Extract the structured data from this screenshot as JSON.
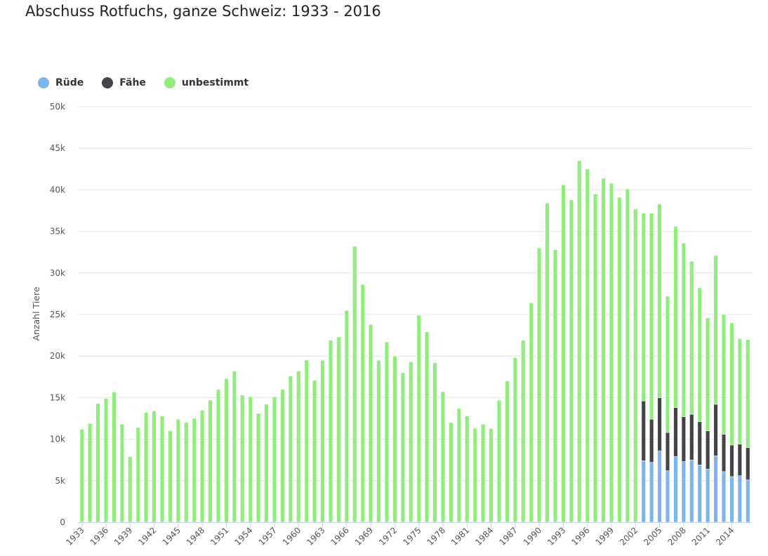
{
  "chart_data": {
    "type": "bar",
    "stacked": true,
    "title": "Abschuss Rotfuchs, ganze Schweiz: 1933 - 2016",
    "ylabel": "Anzahl Tiere",
    "xlabel": "",
    "ylim": [
      0,
      50000
    ],
    "y_ticks": [
      "0",
      "5k",
      "10k",
      "15k",
      "20k",
      "25k",
      "30k",
      "35k",
      "40k",
      "45k",
      "50k"
    ],
    "x_tick_labels": [
      "1933",
      "1936",
      "1939",
      "1942",
      "1945",
      "1948",
      "1951",
      "1954",
      "1957",
      "1960",
      "1963",
      "1966",
      "1969",
      "1972",
      "1975",
      "1978",
      "1981",
      "1984",
      "1987",
      "1990",
      "1993",
      "1996",
      "1999",
      "2002",
      "2005",
      "2008",
      "2011",
      "2014"
    ],
    "grid": true,
    "legend_position": "top-left",
    "categories": [
      "1933",
      "1934",
      "1935",
      "1936",
      "1937",
      "1938",
      "1939",
      "1940",
      "1941",
      "1942",
      "1943",
      "1944",
      "1945",
      "1946",
      "1947",
      "1948",
      "1949",
      "1950",
      "1951",
      "1952",
      "1953",
      "1954",
      "1955",
      "1956",
      "1957",
      "1958",
      "1959",
      "1960",
      "1961",
      "1962",
      "1963",
      "1964",
      "1965",
      "1966",
      "1967",
      "1968",
      "1969",
      "1970",
      "1971",
      "1972",
      "1973",
      "1974",
      "1975",
      "1976",
      "1977",
      "1978",
      "1979",
      "1980",
      "1981",
      "1982",
      "1983",
      "1984",
      "1985",
      "1986",
      "1987",
      "1988",
      "1989",
      "1990",
      "1991",
      "1992",
      "1993",
      "1994",
      "1995",
      "1996",
      "1997",
      "1998",
      "1999",
      "2000",
      "2001",
      "2002",
      "2003",
      "2004",
      "2005",
      "2006",
      "2007",
      "2008",
      "2009",
      "2010",
      "2011",
      "2012",
      "2013",
      "2014",
      "2015",
      "2016"
    ],
    "series": [
      {
        "name": "Rüde",
        "color": "#7cb5ec",
        "values": [
          0,
          0,
          0,
          0,
          0,
          0,
          0,
          0,
          0,
          0,
          0,
          0,
          0,
          0,
          0,
          0,
          0,
          0,
          0,
          0,
          0,
          0,
          0,
          0,
          0,
          0,
          0,
          0,
          0,
          0,
          0,
          0,
          0,
          0,
          0,
          0,
          0,
          0,
          0,
          0,
          0,
          0,
          0,
          0,
          0,
          0,
          0,
          0,
          0,
          0,
          0,
          0,
          0,
          0,
          0,
          0,
          0,
          0,
          0,
          0,
          0,
          0,
          0,
          0,
          0,
          0,
          0,
          0,
          0,
          0,
          7400,
          7200,
          8600,
          6200,
          7900,
          7300,
          7500,
          6900,
          6400,
          8000,
          6100,
          5500,
          5600,
          5100
        ]
      },
      {
        "name": "Fähe",
        "color": "#434348",
        "values": [
          0,
          0,
          0,
          0,
          0,
          0,
          0,
          0,
          0,
          0,
          0,
          0,
          0,
          0,
          0,
          0,
          0,
          0,
          0,
          0,
          0,
          0,
          0,
          0,
          0,
          0,
          0,
          0,
          0,
          0,
          0,
          0,
          0,
          0,
          0,
          0,
          0,
          0,
          0,
          0,
          0,
          0,
          0,
          0,
          0,
          0,
          0,
          0,
          0,
          0,
          0,
          0,
          0,
          0,
          0,
          0,
          0,
          0,
          0,
          0,
          0,
          0,
          0,
          0,
          0,
          0,
          0,
          0,
          0,
          0,
          7200,
          5200,
          6400,
          4600,
          5900,
          5400,
          5500,
          5200,
          4600,
          6200,
          4500,
          3800,
          3800,
          3900
        ]
      },
      {
        "name": "unbestimmt",
        "color": "#90ed7d",
        "values": [
          11200,
          11900,
          14300,
          14900,
          15700,
          11800,
          7900,
          11400,
          13200,
          13400,
          12800,
          11000,
          12400,
          12000,
          12500,
          13500,
          14700,
          16000,
          17300,
          18200,
          15300,
          15100,
          13100,
          14200,
          15100,
          16000,
          17600,
          18200,
          19500,
          17100,
          19500,
          21900,
          22300,
          25500,
          33200,
          28600,
          23800,
          19500,
          21700,
          20000,
          18000,
          19300,
          24900,
          22900,
          19200,
          15700,
          12000,
          13700,
          12800,
          11300,
          11800,
          11300,
          14700,
          17000,
          19800,
          21900,
          26400,
          33000,
          38400,
          32800,
          40600,
          38800,
          43500,
          42500,
          39500,
          41400,
          40800,
          39100,
          40100,
          37700,
          22600,
          24800,
          23300,
          16400,
          21800,
          20900,
          18400,
          16100,
          13600,
          17900,
          14400,
          14700,
          12700,
          13000
        ]
      }
    ]
  }
}
